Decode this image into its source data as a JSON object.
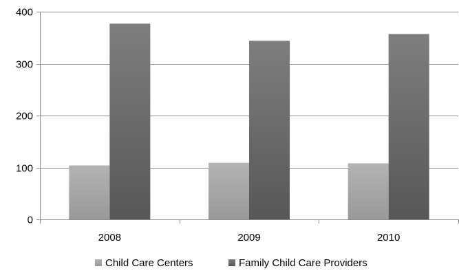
{
  "chart_data": {
    "type": "bar",
    "title": "",
    "xlabel": "",
    "ylabel": "",
    "categories": [
      "2008",
      "2009",
      "2010"
    ],
    "ylim": [
      0,
      400
    ],
    "yticks": [
      0,
      100,
      200,
      300,
      400
    ],
    "grid": true,
    "legend_position": "bottom",
    "series": [
      {
        "name": "Child Care Centers",
        "values": [
          104,
          109,
          108
        ],
        "color": "#a6a6a6"
      },
      {
        "name": "Family Child Care Providers",
        "values": [
          377,
          344,
          357
        ],
        "color": "#6e6e6e"
      }
    ]
  }
}
